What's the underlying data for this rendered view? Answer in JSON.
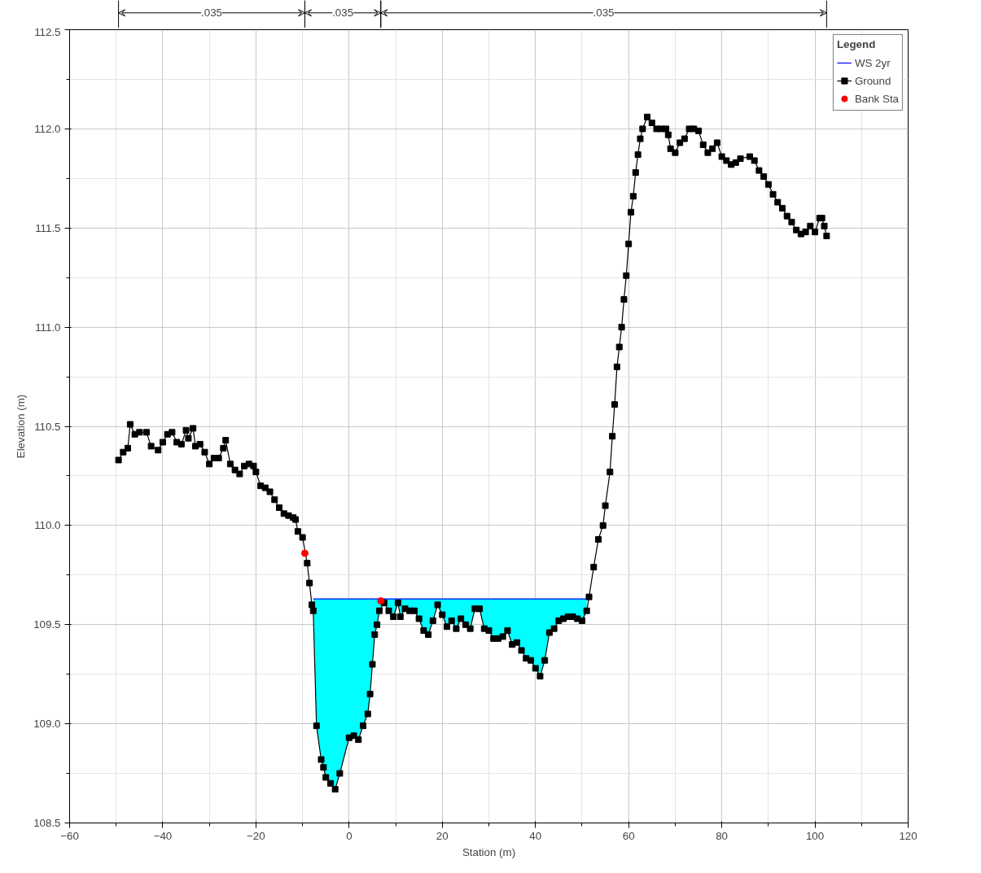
{
  "chart_data": {
    "type": "line",
    "xlabel": "Station (m)",
    "ylabel": "Elevation (m)",
    "legend_title": "Legend",
    "annotations": [
      ".035",
      ".035",
      ".035"
    ],
    "xlim": [
      -60,
      120
    ],
    "xticks": [
      -60,
      -40,
      -20,
      0,
      20,
      40,
      60,
      80,
      100,
      120
    ],
    "ylim": [
      108.5,
      112.5
    ],
    "yticks": [
      108.5,
      {
        "value": 109,
        "label": "109.0"
      },
      109.5,
      {
        "value": 110,
        "label": "110.0"
      },
      110.5,
      {
        "value": 111,
        "label": "111.0"
      },
      111.5,
      {
        "value": 112,
        "label": "112.0"
      },
      112.5
    ],
    "grid": true,
    "legend": "top right",
    "series": [
      {
        "name": "WS 2yr",
        "marker": "none",
        "color": "#0000ff",
        "x": [
          -7.7,
          -7,
          -6,
          -5.5,
          -5,
          -4,
          -3,
          -2,
          0,
          1,
          2,
          3,
          4,
          4.5,
          5,
          5.5,
          6,
          6.5,
          7.5,
          8.5,
          9.5,
          10.5,
          11,
          12,
          13,
          14,
          15,
          16,
          17,
          18,
          19,
          20,
          21,
          22,
          23,
          24,
          25,
          26,
          27,
          28,
          29,
          30,
          31,
          32,
          33,
          34,
          35,
          36,
          37,
          38,
          39,
          40,
          41,
          42,
          43,
          44,
          45,
          46,
          47,
          48,
          49,
          50,
          51
        ],
        "values": [
          109.63,
          109.63,
          109.63,
          109.63,
          109.63,
          109.63,
          109.63,
          109.63,
          109.63,
          109.63,
          109.63,
          109.63,
          109.63,
          109.63,
          109.63,
          109.63,
          109.63,
          109.63,
          109.63,
          109.63,
          109.63,
          109.63,
          109.63,
          109.63,
          109.63,
          109.63,
          109.63,
          109.63,
          109.63,
          109.63,
          109.63,
          109.63,
          109.63,
          109.63,
          109.63,
          109.63,
          109.63,
          109.63,
          109.63,
          109.63,
          109.63,
          109.63,
          109.63,
          109.63,
          109.63,
          109.63,
          109.63,
          109.63,
          109.63,
          109.63,
          109.63,
          109.63,
          109.63,
          109.63,
          109.63,
          109.63,
          109.63,
          109.63,
          109.63,
          109.63,
          109.63,
          109.63,
          109.63
        ],
        "lower": [
          109.57,
          108.99,
          108.82,
          108.78,
          108.73,
          108.7,
          108.67,
          108.75,
          108.93,
          108.94,
          108.92,
          108.99,
          109.05,
          109.15,
          109.3,
          109.45,
          109.5,
          109.57,
          109.61,
          109.57,
          109.54,
          109.61,
          109.54,
          109.58,
          109.57,
          109.57,
          109.53,
          109.47,
          109.45,
          109.52,
          109.6,
          109.55,
          109.49,
          109.52,
          109.48,
          109.53,
          109.5,
          109.48,
          109.58,
          109.58,
          109.48,
          109.47,
          109.43,
          109.43,
          109.44,
          109.47,
          109.4,
          109.41,
          109.37,
          109.33,
          109.32,
          109.28,
          109.24,
          109.32,
          109.46,
          109.48,
          109.52,
          109.53,
          109.54,
          109.54,
          109.53,
          109.52,
          109.57
        ],
        "upper": [
          109.63,
          109.63,
          109.63,
          109.63,
          109.63,
          109.63,
          109.63,
          109.63,
          109.63,
          109.63,
          109.63,
          109.63,
          109.63,
          109.63,
          109.63,
          109.63,
          109.63,
          109.63,
          109.63,
          109.63,
          109.63,
          109.63,
          109.63,
          109.63,
          109.63,
          109.63,
          109.63,
          109.63,
          109.63,
          109.63,
          109.63,
          109.63,
          109.63,
          109.63,
          109.63,
          109.63,
          109.63,
          109.63,
          109.63,
          109.63,
          109.63,
          109.63,
          109.63,
          109.63,
          109.63,
          109.63,
          109.63,
          109.63,
          109.63,
          109.63,
          109.63,
          109.63,
          109.63,
          109.63,
          109.63,
          109.63,
          109.63,
          109.63,
          109.63,
          109.63,
          109.63,
          109.63,
          109.63
        ]
      },
      {
        "name": "Ground",
        "marker": "square",
        "color": "#000000",
        "x": [
          -49.5,
          -48.5,
          -47.5,
          -47,
          -46,
          -45,
          -43.5,
          -42.5,
          -41,
          -40,
          -39,
          -38,
          -37,
          -36,
          -35,
          -34.5,
          -33.5,
          -33,
          -32,
          -31,
          -30,
          -29,
          -28,
          -27,
          -26.5,
          -25.5,
          -24.5,
          -23.5,
          -22.5,
          -21.5,
          -20.5,
          -20,
          -19,
          -18,
          -17,
          -16,
          -15,
          -14,
          -13,
          -12,
          -11.5,
          -11,
          -10,
          -9,
          -8.5,
          -8,
          -7.7,
          -7,
          -6,
          -5.5,
          -5,
          -4,
          -3,
          -2,
          0,
          1,
          2,
          3,
          4,
          4.5,
          5,
          5.5,
          6,
          6.5,
          7.5,
          8.5,
          9.5,
          10.5,
          11,
          12,
          13,
          14,
          15,
          16,
          17,
          18,
          19,
          20,
          21,
          22,
          23,
          24,
          25,
          26,
          27,
          28,
          29,
          30,
          31,
          32,
          33,
          34,
          35,
          36,
          37,
          38,
          39,
          40,
          41,
          42,
          43,
          44,
          45,
          46,
          47,
          48,
          49,
          50,
          51,
          51.5,
          52.5,
          53.5,
          54.5,
          55,
          56,
          56.5,
          57,
          57.5,
          58,
          58.5,
          59,
          59.5,
          60,
          60.5,
          61,
          61.5,
          62,
          62.5,
          63,
          64,
          65,
          66,
          67,
          68,
          68.5,
          69,
          70,
          71,
          72,
          73,
          74,
          75,
          76,
          77,
          78,
          79,
          80,
          81,
          82,
          83,
          84,
          86,
          87,
          88,
          89,
          90,
          91,
          92,
          93,
          94,
          95,
          96,
          97,
          98,
          99,
          100,
          101,
          101.5,
          102,
          102.5
        ],
        "values": [
          110.33,
          110.37,
          110.39,
          110.51,
          110.46,
          110.47,
          110.47,
          110.4,
          110.38,
          110.42,
          110.46,
          110.47,
          110.42,
          110.41,
          110.48,
          110.44,
          110.49,
          110.4,
          110.41,
          110.37,
          110.31,
          110.34,
          110.34,
          110.39,
          110.43,
          110.31,
          110.28,
          110.26,
          110.3,
          110.31,
          110.3,
          110.27,
          110.2,
          110.19,
          110.17,
          110.13,
          110.09,
          110.06,
          110.05,
          110.04,
          110.03,
          109.97,
          109.94,
          109.81,
          109.71,
          109.6,
          109.57,
          108.99,
          108.82,
          108.78,
          108.73,
          108.7,
          108.67,
          108.75,
          108.93,
          108.94,
          108.92,
          108.99,
          109.05,
          109.15,
          109.3,
          109.45,
          109.5,
          109.57,
          109.61,
          109.57,
          109.54,
          109.61,
          109.54,
          109.58,
          109.57,
          109.57,
          109.53,
          109.47,
          109.45,
          109.52,
          109.6,
          109.55,
          109.49,
          109.52,
          109.48,
          109.53,
          109.5,
          109.48,
          109.58,
          109.58,
          109.48,
          109.47,
          109.43,
          109.43,
          109.44,
          109.47,
          109.4,
          109.41,
          109.37,
          109.33,
          109.32,
          109.28,
          109.24,
          109.32,
          109.46,
          109.48,
          109.52,
          109.53,
          109.54,
          109.54,
          109.53,
          109.52,
          109.57,
          109.64,
          109.79,
          109.93,
          110.0,
          110.1,
          110.27,
          110.45,
          110.61,
          110.8,
          110.9,
          111.0,
          111.14,
          111.26,
          111.42,
          111.58,
          111.66,
          111.78,
          111.87,
          111.95,
          112.0,
          112.06,
          112.03,
          112.0,
          112.0,
          112.0,
          111.97,
          111.9,
          111.88,
          111.93,
          111.95,
          112.0,
          112.0,
          111.99,
          111.92,
          111.88,
          111.9,
          111.93,
          111.86,
          111.84,
          111.82,
          111.83,
          111.85,
          111.86,
          111.84,
          111.79,
          111.76,
          111.72,
          111.67,
          111.63,
          111.6,
          111.56,
          111.53,
          111.49,
          111.47,
          111.48,
          111.51,
          111.48,
          111.55,
          111.55,
          111.51,
          111.46
        ]
      },
      {
        "name": "Bank Sta",
        "type": "scatter",
        "marker": "circle",
        "color": "#ff0000",
        "x": [
          -9.5,
          6.8
        ],
        "values": [
          109.86,
          109.62
        ]
      }
    ]
  }
}
